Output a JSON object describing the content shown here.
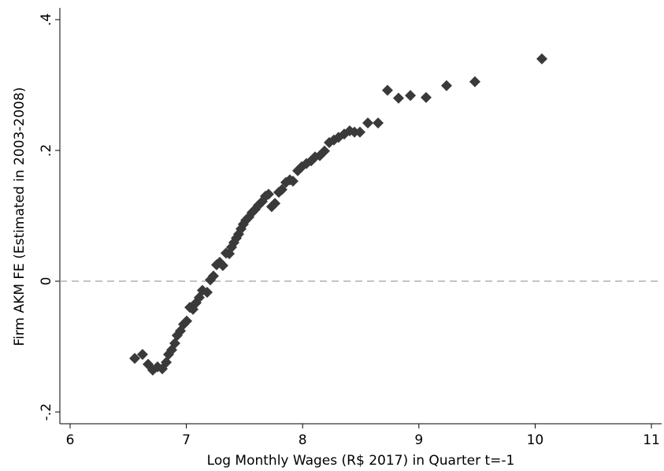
{
  "chart_data": {
    "type": "scatter",
    "x_label": "Log Monthly Wages (R$ 2017) in Quarter t=-1",
    "y_label": "Firm AKM FE (Estimated in 2003-2008)",
    "xlim": [
      5.912,
      11.088
    ],
    "ylim": [
      -0.218,
      0.418
    ],
    "xticks": [
      6,
      7,
      8,
      9,
      10,
      11
    ],
    "yticks": [
      {
        "value": -0.2,
        "label": "-.2"
      },
      0,
      {
        "value": 0.2,
        "label": ".2"
      },
      {
        "value": 0.4,
        "label": ".4"
      }
    ],
    "reference_line": 0,
    "color": "#3a3a3a",
    "x": [
      6.556,
      6.623,
      6.671,
      6.711,
      6.752,
      6.793,
      6.827,
      6.847,
      6.874,
      6.901,
      6.921,
      6.949,
      6.976,
      7.003,
      7.03,
      7.057,
      7.084,
      7.111,
      7.138,
      7.179,
      7.206,
      7.233,
      7.26,
      7.287,
      7.314,
      7.341,
      7.369,
      7.389,
      7.409,
      7.43,
      7.45,
      7.47,
      7.49,
      7.511,
      7.538,
      7.565,
      7.592,
      7.619,
      7.653,
      7.68,
      7.707,
      7.734,
      7.762,
      7.795,
      7.822,
      7.856,
      7.89,
      7.917,
      7.958,
      7.992,
      8.033,
      8.073,
      8.107,
      8.148,
      8.188,
      8.229,
      8.269,
      8.309,
      8.358,
      8.405,
      8.446,
      8.493,
      8.561,
      8.649,
      8.73,
      8.825,
      8.927,
      9.062,
      9.238,
      9.482,
      10.058
    ],
    "values": [
      -0.118,
      -0.112,
      -0.127,
      -0.136,
      -0.131,
      -0.134,
      -0.124,
      -0.112,
      -0.105,
      -0.095,
      -0.083,
      -0.076,
      -0.066,
      -0.061,
      -0.04,
      -0.043,
      -0.033,
      -0.025,
      -0.014,
      -0.017,
      0.002,
      0.008,
      0.025,
      0.029,
      0.024,
      0.043,
      0.042,
      0.052,
      0.059,
      0.066,
      0.072,
      0.08,
      0.087,
      0.093,
      0.098,
      0.105,
      0.11,
      0.116,
      0.122,
      0.13,
      0.133,
      0.114,
      0.119,
      0.136,
      0.14,
      0.151,
      0.155,
      0.153,
      0.169,
      0.175,
      0.18,
      0.184,
      0.19,
      0.192,
      0.199,
      0.212,
      0.216,
      0.22,
      0.225,
      0.23,
      0.228,
      0.228,
      0.242,
      0.242,
      0.292,
      0.28,
      0.284,
      0.281,
      0.299,
      0.305,
      0.34
    ]
  }
}
